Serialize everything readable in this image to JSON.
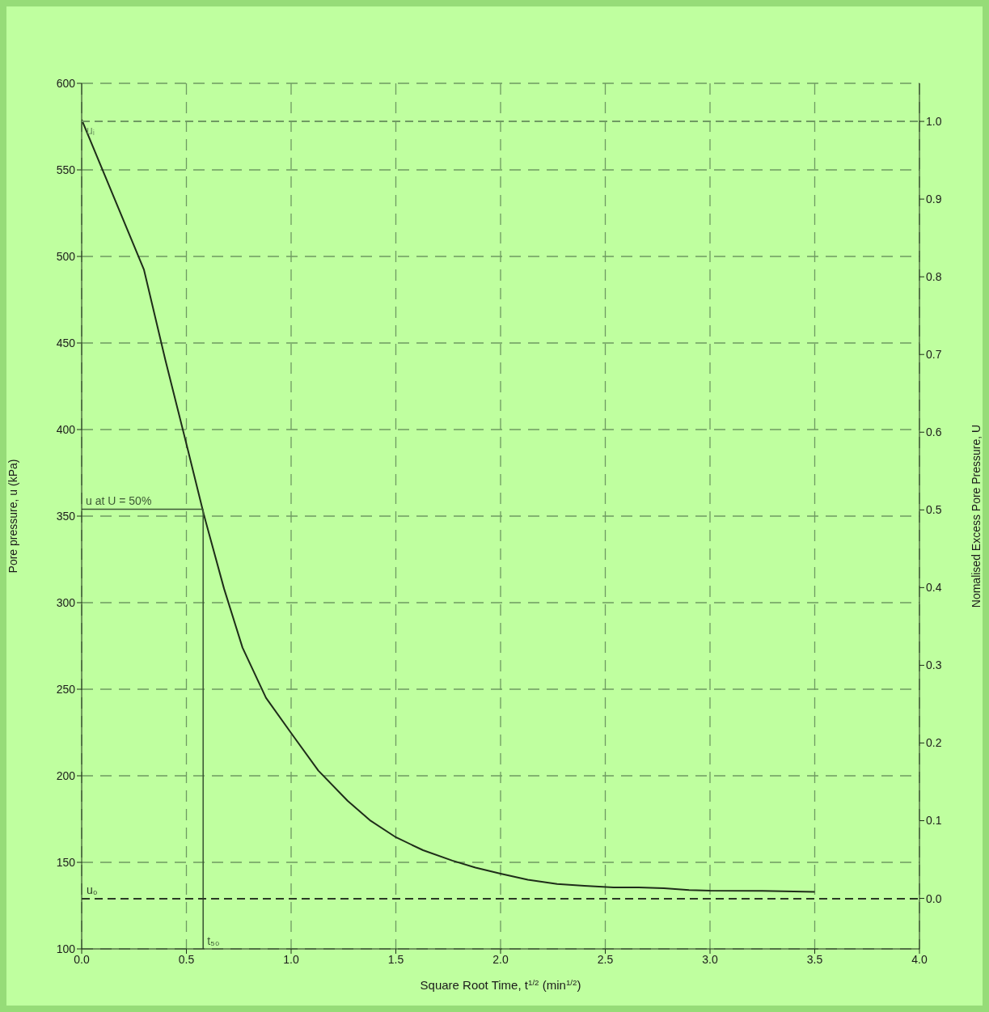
{
  "chart_data": {
    "type": "line",
    "xlabel": "Square Root Time, t$^{1/2}$ (min$^{1/2}$)",
    "ylabel": "Pore pressure, u (kPa)",
    "y2label": "Nomalised Excess Pore Pressure, U",
    "xlim": [
      0,
      4
    ],
    "xticks": [
      {
        "value": 0,
        "label": "0.0"
      },
      {
        "value": 0.5,
        "label": "0.5"
      },
      {
        "value": 1,
        "label": "1.0"
      },
      {
        "value": 1.5,
        "label": "1.5"
      },
      {
        "value": 2,
        "label": "2.0"
      },
      {
        "value": 2.5,
        "label": "2.5"
      },
      {
        "value": 3,
        "label": "3.0"
      },
      {
        "value": 3.5,
        "label": "3.5"
      },
      {
        "value": 4,
        "label": "4.0"
      }
    ],
    "ylim": [
      100,
      600
    ],
    "yticks": [
      100,
      150,
      200,
      250,
      300,
      350,
      400,
      450,
      500,
      550,
      600
    ],
    "y2lim": [
      -0.065,
      1.049
    ],
    "y2ticks": [
      {
        "value": 0,
        "label": "0.0"
      },
      {
        "value": 0.1,
        "label": "0.1"
      },
      {
        "value": 0.2,
        "label": "0.2"
      },
      {
        "value": 0.3,
        "label": "0.3"
      },
      {
        "value": 0.4,
        "label": "0.4"
      },
      {
        "value": 0.5,
        "label": "0.5"
      },
      {
        "value": 0.6,
        "label": "0.6"
      },
      {
        "value": 0.7,
        "label": "0.7"
      },
      {
        "value": 0.8,
        "label": "0.8"
      },
      {
        "value": 0.9,
        "label": "0.9"
      },
      {
        "value": 1,
        "label": "1.0"
      }
    ],
    "grid": true,
    "marker": "none",
    "series": [
      {
        "color": "#1e2d19",
        "x": [
          0,
          0.297,
          0.4,
          0.506,
          0.583,
          0.68,
          0.768,
          0.88,
          1.01,
          1.13,
          1.27,
          1.38,
          1.5,
          1.63,
          1.77,
          1.88,
          2.0,
          2.13,
          2.27,
          2.4,
          2.54,
          2.66,
          2.78,
          2.9,
          3.0,
          3.25,
          3.5
        ],
        "values": [
          579,
          492.5,
          440,
          388.8,
          351,
          308,
          274,
          245,
          223,
          203,
          185.5,
          174,
          164.5,
          157,
          151,
          147,
          143.5,
          140,
          137.5,
          136.5,
          135.5,
          135.5,
          135,
          134,
          133.6,
          133.5,
          133
        ]
      },
      {
        "color": "#3d5a36",
        "x": [
          0,
          0.58
        ],
        "values": [
          354,
          354
        ]
      },
      {
        "color": "#3d5a36",
        "x": [
          0.58,
          0.58
        ],
        "values": [
          100,
          354
        ]
      }
    ],
    "ref_lines": [
      {
        "axis": "y",
        "value": 578,
        "label": "uᵢ",
        "color": "#6f9a62",
        "line_style": "dashed"
      },
      {
        "axis": "y",
        "value": 129,
        "label": "u₀",
        "color": "#2a3a25",
        "line_style": "dashed"
      }
    ],
    "annotations": [
      {
        "text": "u at U = 50%",
        "x": 0,
        "y": 354
      },
      {
        "text": "t₅₀",
        "x": 0.58,
        "y": 100
      }
    ]
  }
}
